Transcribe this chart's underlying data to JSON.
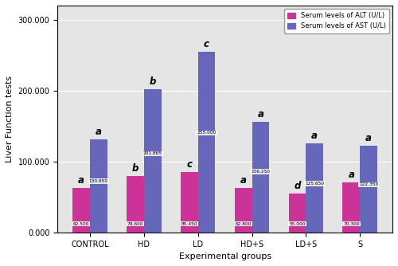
{
  "categories": [
    "CONTROL",
    "HD",
    "LD",
    "HD+S",
    "LD+S",
    "S"
  ],
  "ALT_values": [
    62500,
    79600,
    85450,
    62800,
    55000,
    70300
  ],
  "AST_values": [
    130650,
    201865,
    255000,
    156250,
    125650,
    122350
  ],
  "ALT_value_labels": [
    "62.500",
    "79.600",
    "85.450",
    "62.800",
    "55.000",
    "70.300"
  ],
  "AST_value_labels": [
    "130.650",
    "201.865",
    "255.000",
    "156.250",
    "125.650",
    "122.350"
  ],
  "ALT_color": "#CC3399",
  "AST_color": "#6666BB",
  "ALT_letters": [
    "a",
    "b",
    "c",
    "a",
    "d",
    "a"
  ],
  "AST_letters": [
    "a",
    "b",
    "c",
    "a",
    "a",
    "a"
  ],
  "ylabel": "Liver Function tests",
  "xlabel": "Experimental groups",
  "ylim": [
    0,
    320000
  ],
  "yticks": [
    0,
    100000,
    200000,
    300000
  ],
  "ytick_labels": [
    "0.000",
    "100.000",
    "200.000",
    "300.000"
  ],
  "legend_ALT": "Serum levels of ALT (U/L)",
  "legend_AST": "Serum levels of AST (U/L)",
  "bg_color": "#E5E5E5",
  "bar_width": 0.32
}
